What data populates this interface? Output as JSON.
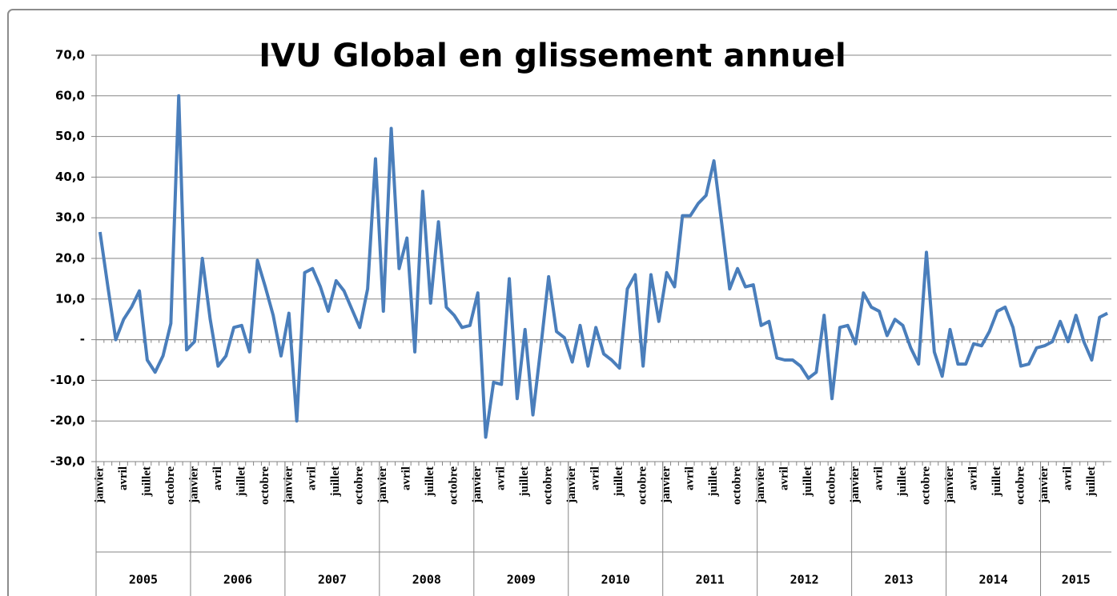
{
  "chart_data": {
    "type": "line",
    "title": "IVU Global en glissement annuel",
    "categories": [
      "janvier",
      null,
      null,
      "avril",
      null,
      null,
      "juillet",
      null,
      null,
      "octobre",
      null,
      null,
      "janvier",
      null,
      null,
      "avril",
      null,
      null,
      "juillet",
      null,
      null,
      "octobre",
      null,
      null,
      "janvier",
      null,
      null,
      "avril",
      null,
      null,
      "juillet",
      null,
      null,
      "octobre",
      null,
      null,
      "janvier",
      null,
      null,
      "avril",
      null,
      null,
      "juillet",
      null,
      null,
      "octobre",
      null,
      null,
      "janvier",
      null,
      null,
      "avril",
      null,
      null,
      "juillet",
      null,
      null,
      "octobre",
      null,
      null,
      "janvier",
      null,
      null,
      "avril",
      null,
      null,
      "juillet",
      null,
      null,
      "octobre",
      null,
      null,
      "janvier",
      null,
      null,
      "avril",
      null,
      null,
      "juillet",
      null,
      null,
      "octobre",
      null,
      null,
      "janvier",
      null,
      null,
      "avril",
      null,
      null,
      "juillet",
      null,
      null,
      "octobre",
      null,
      null,
      "janvier",
      null,
      null,
      "avril",
      null,
      null,
      "juillet",
      null,
      null,
      "octobre",
      null,
      null,
      "janvier",
      null,
      null,
      "avril",
      null,
      null,
      "juillet",
      null,
      null,
      "octobre",
      null,
      null,
      "janvier",
      null,
      null,
      "avril",
      null,
      null,
      "juillet",
      null,
      null
    ],
    "groups": [
      "2005",
      "2006",
      "2007",
      "2008",
      "2009",
      "2010",
      "2011",
      "2012",
      "2013",
      "2014",
      "2015"
    ],
    "values": [
      26.5,
      13,
      0,
      5,
      8,
      12,
      -5,
      -8,
      -4,
      4,
      60,
      -2.5,
      -0.5,
      20,
      5,
      -6.5,
      -4,
      3,
      3.5,
      -3,
      19.5,
      13,
      6,
      -4,
      6.5,
      -20,
      16.5,
      17.5,
      13,
      7,
      14.5,
      12,
      7.5,
      3,
      12.5,
      44.5,
      7,
      52,
      17.5,
      25,
      -3,
      36.5,
      9,
      29,
      8,
      6,
      3,
      3.5,
      11.5,
      -24,
      -10.5,
      -11,
      15,
      -14.5,
      2.5,
      -18.5,
      -2,
      15.5,
      2,
      0.5,
      -5.5,
      3.5,
      -6.5,
      3,
      -3.5,
      -5,
      -7,
      12.5,
      16,
      -6.5,
      16,
      4.5,
      16.5,
      13,
      30.5,
      30.5,
      33.5,
      35.5,
      44,
      28.5,
      12.5,
      17.5,
      13,
      13.5,
      3.5,
      4.5,
      -4.5,
      -5,
      -5,
      -6.5,
      -9.5,
      -8,
      6,
      -14.5,
      3,
      3.5,
      -1,
      11.5,
      8,
      7,
      1,
      5,
      3.5,
      -2,
      -6,
      21.5,
      -3,
      -9,
      2.5,
      -6,
      -6,
      -1,
      -1.5,
      2,
      7,
      8,
      3,
      -6.5,
      -6,
      -2,
      -1.5,
      -0.5,
      4.5,
      -0.5,
      6,
      -0.5,
      -5,
      5.5,
      6.5
    ],
    "color": "#4a7ebb",
    "ylim": [
      -30,
      70
    ],
    "yticks": [
      {
        "value": -30,
        "label": "-30,0"
      },
      {
        "value": -20,
        "label": "-20,0"
      },
      {
        "value": -10,
        "label": "-10,0"
      },
      {
        "value": 0,
        "label": "-"
      },
      {
        "value": 10,
        "label": "10,0"
      },
      {
        "value": 20,
        "label": "20,0"
      },
      {
        "value": 30,
        "label": "30,0"
      },
      {
        "value": 40,
        "label": "40,0"
      },
      {
        "value": 50,
        "label": "50,0"
      },
      {
        "value": 60,
        "label": "60,0"
      },
      {
        "value": 70,
        "label": "70,0"
      }
    ],
    "grid": true
  }
}
